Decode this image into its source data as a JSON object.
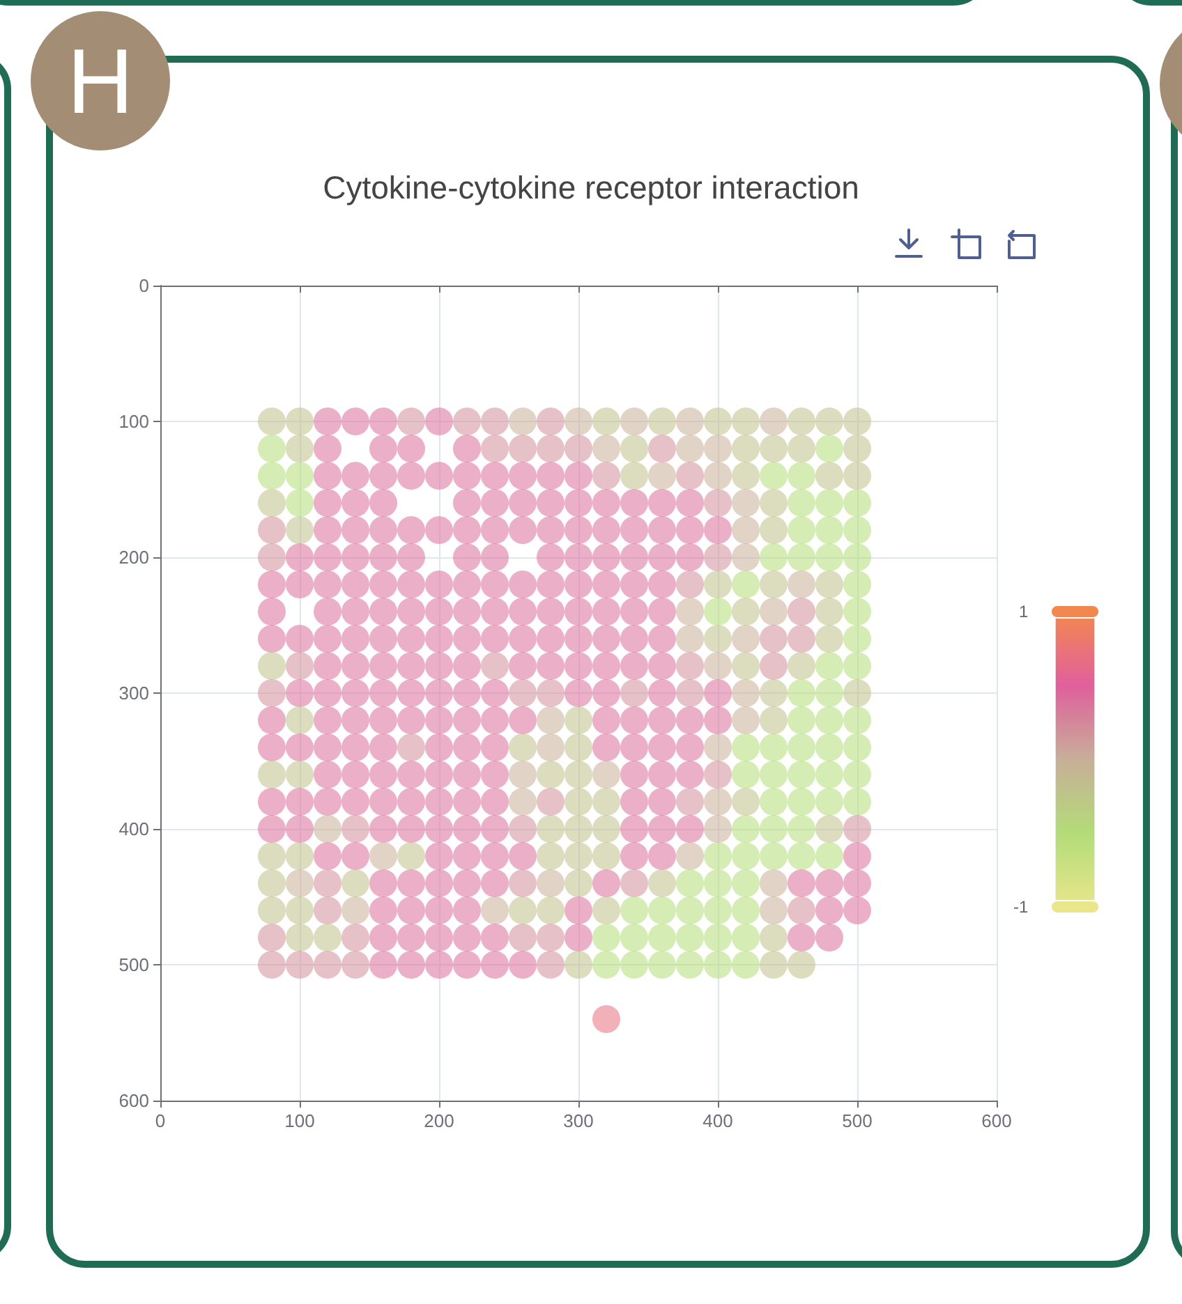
{
  "chart_data": {
    "type": "scatter",
    "title": "Cytokine-cytokine receptor interaction",
    "annotations": [
      "H"
    ],
    "xlim": [
      0,
      600
    ],
    "ylim": [
      600,
      0
    ],
    "xticks": [
      0,
      100,
      200,
      300,
      400,
      500,
      600
    ],
    "yticks": [
      0,
      100,
      200,
      300,
      400,
      500,
      600
    ],
    "clim": [
      -1,
      1
    ],
    "cticks": [
      -1,
      1
    ],
    "grid": true,
    "marker": "circle",
    "x": [
      80,
      100,
      120,
      140,
      160,
      180,
      200,
      220,
      240,
      260,
      280,
      300,
      320,
      340,
      360,
      380,
      400,
      420,
      440,
      460,
      480,
      500,
      80,
      100,
      120,
      160,
      180,
      220,
      240,
      260,
      280,
      300,
      320,
      340,
      360,
      380,
      400,
      420,
      440,
      460,
      480,
      500,
      80,
      100,
      120,
      140,
      160,
      180,
      200,
      220,
      240,
      260,
      280,
      300,
      320,
      340,
      360,
      380,
      400,
      420,
      440,
      460,
      480,
      500,
      80,
      100,
      120,
      140,
      160,
      220,
      240,
      260,
      280,
      300,
      320,
      340,
      360,
      380,
      400,
      420,
      440,
      460,
      480,
      500,
      80,
      100,
      120,
      140,
      160,
      180,
      200,
      220,
      240,
      260,
      280,
      300,
      320,
      340,
      360,
      380,
      400,
      420,
      440,
      460,
      480,
      500,
      80,
      100,
      120,
      140,
      160,
      180,
      220,
      240,
      280,
      300,
      320,
      340,
      360,
      380,
      400,
      420,
      440,
      460,
      480,
      500,
      80,
      100,
      120,
      140,
      160,
      180,
      200,
      220,
      240,
      260,
      280,
      300,
      320,
      340,
      360,
      380,
      400,
      420,
      440,
      460,
      480,
      500,
      80,
      120,
      140,
      160,
      180,
      200,
      220,
      240,
      260,
      280,
      300,
      320,
      340,
      360,
      380,
      400,
      420,
      440,
      460,
      480,
      500,
      80,
      100,
      120,
      140,
      160,
      180,
      200,
      220,
      240,
      260,
      280,
      300,
      320,
      340,
      360,
      380,
      400,
      420,
      440,
      460,
      480,
      500,
      80,
      100,
      120,
      140,
      160,
      180,
      200,
      220,
      240,
      260,
      280,
      300,
      320,
      340,
      360,
      380,
      400,
      420,
      440,
      460,
      480,
      500,
      80,
      100,
      120,
      140,
      160,
      180,
      200,
      220,
      240,
      260,
      280,
      300,
      320,
      340,
      360,
      380,
      400,
      420,
      440,
      460,
      480,
      500,
      80,
      100,
      120,
      140,
      160,
      180,
      200,
      220,
      240,
      260,
      280,
      300,
      320,
      340,
      360,
      380,
      400,
      420,
      440,
      460,
      480,
      500,
      80,
      100,
      120,
      140,
      160,
      180,
      200,
      220,
      240,
      260,
      280,
      300,
      320,
      340,
      360,
      380,
      400,
      420,
      440,
      460,
      480,
      500,
      80,
      100,
      120,
      140,
      160,
      180,
      200,
      220,
      240,
      260,
      280,
      300,
      320,
      340,
      360,
      380,
      400,
      420,
      440,
      460,
      480,
      500,
      80,
      100,
      120,
      140,
      160,
      180,
      200,
      220,
      240,
      260,
      280,
      300,
      320,
      340,
      360,
      380,
      400,
      420,
      440,
      460,
      480,
      500,
      80,
      100,
      120,
      140,
      160,
      180,
      200,
      220,
      240,
      260,
      280,
      300,
      320,
      340,
      360,
      380,
      400,
      420,
      440,
      460,
      480,
      500,
      80,
      100,
      120,
      140,
      160,
      180,
      200,
      220,
      240,
      260,
      280,
      300,
      320,
      340,
      360,
      380,
      400,
      420,
      440,
      460,
      480,
      500,
      80,
      100,
      120,
      140,
      160,
      180,
      200,
      220,
      240,
      260,
      280,
      300,
      320,
      340,
      360,
      380,
      400,
      420,
      440,
      460,
      480,
      500,
      80,
      100,
      120,
      140,
      160,
      180,
      200,
      220,
      240,
      260,
      280,
      300,
      320,
      340,
      360,
      380,
      400,
      420,
      440,
      460,
      480,
      500,
      80,
      100,
      120,
      140,
      160,
      180,
      200,
      220,
      240,
      260,
      280,
      300,
      320,
      340,
      360,
      380,
      400,
      420,
      440,
      460,
      480,
      80,
      100,
      120,
      140,
      160,
      180,
      200,
      220,
      240,
      260,
      280,
      300,
      320,
      340,
      360,
      380,
      400,
      420,
      440,
      460,
      320
    ],
    "values": [
      100,
      100,
      100,
      100,
      100,
      100,
      100,
      100,
      100,
      100,
      100,
      100,
      100,
      100,
      100,
      100,
      100,
      100,
      100,
      100,
      100,
      100,
      120,
      120,
      120,
      120,
      120,
      120,
      120,
      120,
      120,
      120,
      120,
      120,
      120,
      120,
      120,
      120,
      120,
      120,
      120,
      120,
      140,
      140,
      140,
      140,
      140,
      140,
      140,
      140,
      140,
      140,
      140,
      140,
      140,
      140,
      140,
      140,
      140,
      140,
      140,
      140,
      140,
      140,
      160,
      160,
      160,
      160,
      160,
      160,
      160,
      160,
      160,
      160,
      160,
      160,
      160,
      160,
      160,
      160,
      160,
      160,
      160,
      160,
      180,
      180,
      180,
      180,
      180,
      180,
      180,
      180,
      180,
      180,
      180,
      180,
      180,
      180,
      180,
      180,
      180,
      180,
      180,
      180,
      180,
      180,
      200,
      200,
      200,
      200,
      200,
      200,
      200,
      200,
      200,
      200,
      200,
      200,
      200,
      200,
      200,
      200,
      200,
      200,
      200,
      200,
      220,
      220,
      220,
      220,
      220,
      220,
      220,
      220,
      220,
      220,
      220,
      220,
      220,
      220,
      220,
      220,
      220,
      220,
      220,
      220,
      220,
      220,
      240,
      240,
      240,
      240,
      240,
      240,
      240,
      240,
      240,
      240,
      240,
      240,
      240,
      240,
      240,
      240,
      240,
      240,
      240,
      240,
      240,
      260,
      260,
      260,
      260,
      260,
      260,
      260,
      260,
      260,
      260,
      260,
      260,
      260,
      260,
      260,
      260,
      260,
      260,
      260,
      260,
      260,
      260,
      280,
      280,
      280,
      280,
      280,
      280,
      280,
      280,
      280,
      280,
      280,
      280,
      280,
      280,
      280,
      280,
      280,
      280,
      280,
      280,
      280,
      280,
      300,
      300,
      300,
      300,
      300,
      300,
      300,
      300,
      300,
      300,
      300,
      300,
      300,
      300,
      300,
      300,
      300,
      300,
      300,
      300,
      300,
      300,
      320,
      320,
      320,
      320,
      320,
      320,
      320,
      320,
      320,
      320,
      320,
      320,
      320,
      320,
      320,
      320,
      320,
      320,
      320,
      320,
      320,
      320,
      340,
      340,
      340,
      340,
      340,
      340,
      340,
      340,
      340,
      340,
      340,
      340,
      340,
      340,
      340,
      340,
      340,
      340,
      340,
      340,
      340,
      340,
      360,
      360,
      360,
      360,
      360,
      360,
      360,
      360,
      360,
      360,
      360,
      360,
      360,
      360,
      360,
      360,
      360,
      360,
      360,
      360,
      360,
      360,
      380,
      380,
      380,
      380,
      380,
      380,
      380,
      380,
      380,
      380,
      380,
      380,
      380,
      380,
      380,
      380,
      380,
      380,
      380,
      380,
      380,
      380,
      400,
      400,
      400,
      400,
      400,
      400,
      400,
      400,
      400,
      400,
      400,
      400,
      400,
      400,
      400,
      400,
      400,
      400,
      400,
      400,
      400,
      400,
      420,
      420,
      420,
      420,
      420,
      420,
      420,
      420,
      420,
      420,
      420,
      420,
      420,
      420,
      420,
      420,
      420,
      420,
      420,
      420,
      420,
      420,
      440,
      440,
      440,
      440,
      440,
      440,
      440,
      440,
      440,
      440,
      440,
      440,
      440,
      440,
      440,
      440,
      440,
      440,
      440,
      440,
      440,
      440,
      460,
      460,
      460,
      460,
      460,
      460,
      460,
      460,
      460,
      460,
      460,
      460,
      460,
      460,
      460,
      460,
      460,
      460,
      460,
      460,
      460,
      460,
      480,
      480,
      480,
      480,
      480,
      480,
      480,
      480,
      480,
      480,
      480,
      480,
      480,
      480,
      480,
      480,
      480,
      480,
      480,
      480,
      480,
      500,
      500,
      500,
      500,
      500,
      500,
      500,
      500,
      500,
      500,
      500,
      500,
      500,
      500,
      500,
      500,
      500,
      500,
      500,
      500,
      540
    ],
    "cvalues": [
      -0.2,
      -0.2,
      0.4,
      0.4,
      0.4,
      0.2,
      0.4,
      0.2,
      0.2,
      0,
      0.2,
      0,
      -0.2,
      0,
      -0.2,
      0,
      -0.2,
      -0.2,
      0,
      -0.2,
      -0.2,
      -0.2,
      -0.5,
      -0.2,
      0.4,
      0.4,
      0.4,
      0.4,
      0.2,
      0.2,
      0.2,
      0.2,
      0,
      -0.2,
      0.2,
      0,
      0,
      -0.2,
      -0.2,
      -0.2,
      -0.5,
      -0.2,
      -0.5,
      -0.5,
      0.4,
      0.4,
      0.4,
      0.4,
      0.4,
      0.4,
      0.4,
      0.4,
      0.4,
      0.4,
      0.2,
      -0.2,
      0,
      0.2,
      0,
      -0.2,
      -0.5,
      -0.5,
      -0.2,
      -0.2,
      -0.2,
      -0.5,
      0.4,
      0.4,
      0.4,
      0.4,
      0.4,
      0.4,
      0.4,
      0.4,
      0.4,
      0.4,
      0.4,
      0.4,
      0.2,
      0,
      -0.2,
      -0.5,
      -0.5,
      -0.5,
      0.2,
      -0.2,
      0.4,
      0.4,
      0.4,
      0.4,
      0.4,
      0.4,
      0.4,
      0.4,
      0.4,
      0.4,
      0.4,
      0.4,
      0.4,
      0.4,
      0.4,
      0,
      -0.2,
      -0.5,
      -0.5,
      -0.5,
      0.2,
      0.4,
      0.4,
      0.4,
      0.4,
      0.4,
      0.4,
      0.4,
      0.4,
      0.4,
      0.4,
      0.4,
      0.4,
      0.4,
      0.2,
      0,
      -0.5,
      -0.5,
      -0.5,
      -0.5,
      0.4,
      0.4,
      0.4,
      0.4,
      0.4,
      0.4,
      0.4,
      0.4,
      0.4,
      0.4,
      0.4,
      0.4,
      0.4,
      0.4,
      0.4,
      0.2,
      -0.2,
      -0.5,
      -0.2,
      0,
      -0.2,
      -0.5,
      0.4,
      0.4,
      0.4,
      0.4,
      0.4,
      0.4,
      0.4,
      0.4,
      0.4,
      0.4,
      0.4,
      0.4,
      0.4,
      0.4,
      0,
      -0.5,
      -0.2,
      0,
      0.2,
      -0.2,
      -0.5,
      0.4,
      0.4,
      0.4,
      0.4,
      0.4,
      0.4,
      0.4,
      0.4,
      0.4,
      0.4,
      0.4,
      0.4,
      0.4,
      0.4,
      0.4,
      0,
      -0.2,
      0,
      0.2,
      0.2,
      -0.2,
      -0.5,
      -0.2,
      0.2,
      0.4,
      0.4,
      0.4,
      0.4,
      0.4,
      0.4,
      0.2,
      0.4,
      0.4,
      0.4,
      0.4,
      0.4,
      0.4,
      0.2,
      0,
      -0.2,
      0.2,
      -0.2,
      -0.5,
      -0.5,
      0.2,
      0.4,
      0.4,
      0.4,
      0.4,
      0.4,
      0.4,
      0.4,
      0.4,
      0.2,
      0.2,
      0.4,
      0.4,
      0.2,
      0.4,
      0.2,
      0.4,
      0,
      -0.2,
      -0.5,
      -0.5,
      -0.2,
      0.4,
      -0.2,
      0.4,
      0.4,
      0.4,
      0.4,
      0.4,
      0.4,
      0.4,
      0.4,
      0,
      -0.2,
      0.4,
      0.4,
      0.4,
      0.4,
      0.4,
      0,
      -0.2,
      -0.5,
      -0.5,
      -0.5,
      0.4,
      0.4,
      0.4,
      0.4,
      0.4,
      0.2,
      0.4,
      0.4,
      0.4,
      -0.2,
      0,
      -0.2,
      0.4,
      0.4,
      0.4,
      0.4,
      0,
      -0.5,
      -0.5,
      -0.5,
      -0.5,
      -0.5,
      -0.2,
      -0.2,
      0.4,
      0.4,
      0.4,
      0.4,
      0.4,
      0.4,
      0.4,
      0,
      -0.2,
      -0.2,
      0,
      0.4,
      0.4,
      0.4,
      0.2,
      -0.5,
      -0.5,
      -0.5,
      -0.5,
      -0.5,
      0.4,
      0.4,
      0.4,
      0.4,
      0.4,
      0.4,
      0.4,
      0.4,
      0.4,
      0,
      0.2,
      -0.2,
      -0.2,
      0.4,
      0.4,
      0.2,
      0,
      -0.2,
      -0.5,
      -0.5,
      -0.5,
      -0.5,
      0.4,
      0.4,
      0,
      0.2,
      0.4,
      0.4,
      0.4,
      0.4,
      0.4,
      0.2,
      -0.2,
      -0.2,
      -0.2,
      0.4,
      0.4,
      0.4,
      0,
      -0.5,
      -0.5,
      -0.5,
      -0.2,
      0.2,
      -0.2,
      -0.2,
      0.4,
      0.4,
      0,
      -0.2,
      0.4,
      0.4,
      0.4,
      0.4,
      -0.2,
      -0.2,
      -0.2,
      0.4,
      0.4,
      0,
      -0.5,
      -0.5,
      -0.5,
      -0.5,
      -0.5,
      0.4,
      -0.2,
      0,
      0.2,
      -0.2,
      0.4,
      0.4,
      0.4,
      0.4,
      0.4,
      0.2,
      0,
      -0.2,
      0.4,
      0.2,
      -0.2,
      -0.5,
      -0.5,
      -0.5,
      0,
      0.4,
      0.4,
      0.4,
      -0.2,
      -0.2,
      0.2,
      0,
      0.4,
      0.4,
      0.4,
      0.4,
      0,
      -0.2,
      -0.2,
      0.4,
      -0.2,
      -0.5,
      -0.5,
      -0.5,
      -0.5,
      -0.5,
      0,
      0.2,
      0.4,
      0.4,
      0.2,
      -0.2,
      -0.2,
      0.2,
      0.4,
      0.4,
      0.4,
      0.4,
      0.4,
      0.2,
      0.2,
      0.4,
      -0.5,
      -0.5,
      -0.5,
      -0.5,
      -0.5,
      -0.5,
      -0.2,
      0.4,
      0.4,
      0.2,
      0.2,
      0.2,
      0.2,
      0.4,
      0.4,
      0.4,
      0.4,
      0.4,
      0.4,
      0.2,
      -0.2,
      -0.5,
      -0.5,
      -0.5,
      -0.5,
      -0.5,
      -0.5,
      -0.2,
      -0.2,
      0.7
    ]
  }
}
